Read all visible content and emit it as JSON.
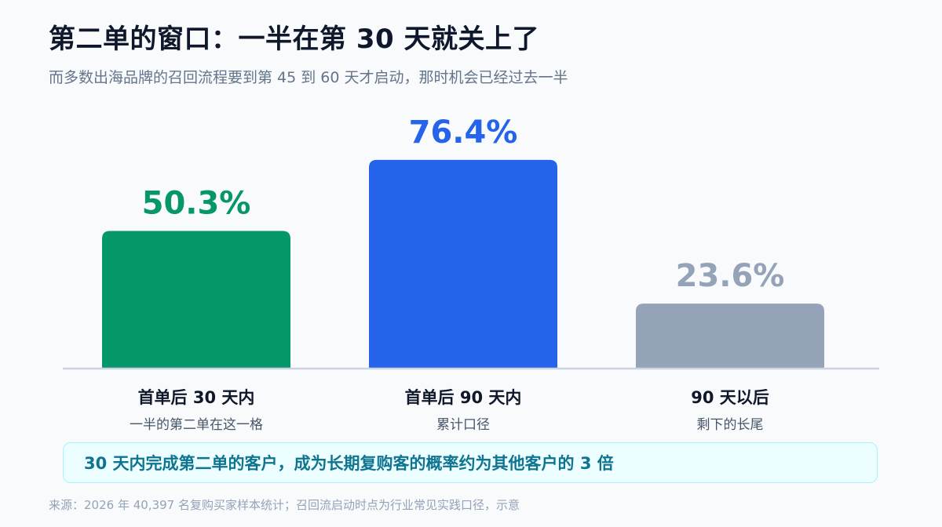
{
  "header": {
    "title": "第二单的窗口：一半在第 30 天就关上了",
    "subtitle": "而多数出海品牌的召回流程要到第 45 到 60 天才启动，那时机会已经过去一半"
  },
  "chart_data": {
    "type": "bar",
    "categories": [
      {
        "label": "首单后 30 天内",
        "sublabel": "一半的第二单在这一格"
      },
      {
        "label": "首单后 90 天内",
        "sublabel": "累计口径"
      },
      {
        "label": "90 天以后",
        "sublabel": "剩下的长尾"
      }
    ],
    "values": [
      50.3,
      76.4,
      23.6
    ],
    "value_labels": [
      "50.3%",
      "76.4%",
      "23.6%"
    ],
    "colors": [
      "#059669",
      "#2563eb",
      "#94a3b8"
    ],
    "baseline_color": "#cbd5e1",
    "ylim": [
      0,
      100
    ],
    "grid": false,
    "legend": "none"
  },
  "callout": {
    "text": "30 天内完成第二单的客户，成为长期复购客的概率约为其他客户的 3 倍"
  },
  "footer": {
    "source": "来源：2026 年 40,397 名复购买家样本统计；召回流启动时点为行业常见实践口径，示意"
  }
}
